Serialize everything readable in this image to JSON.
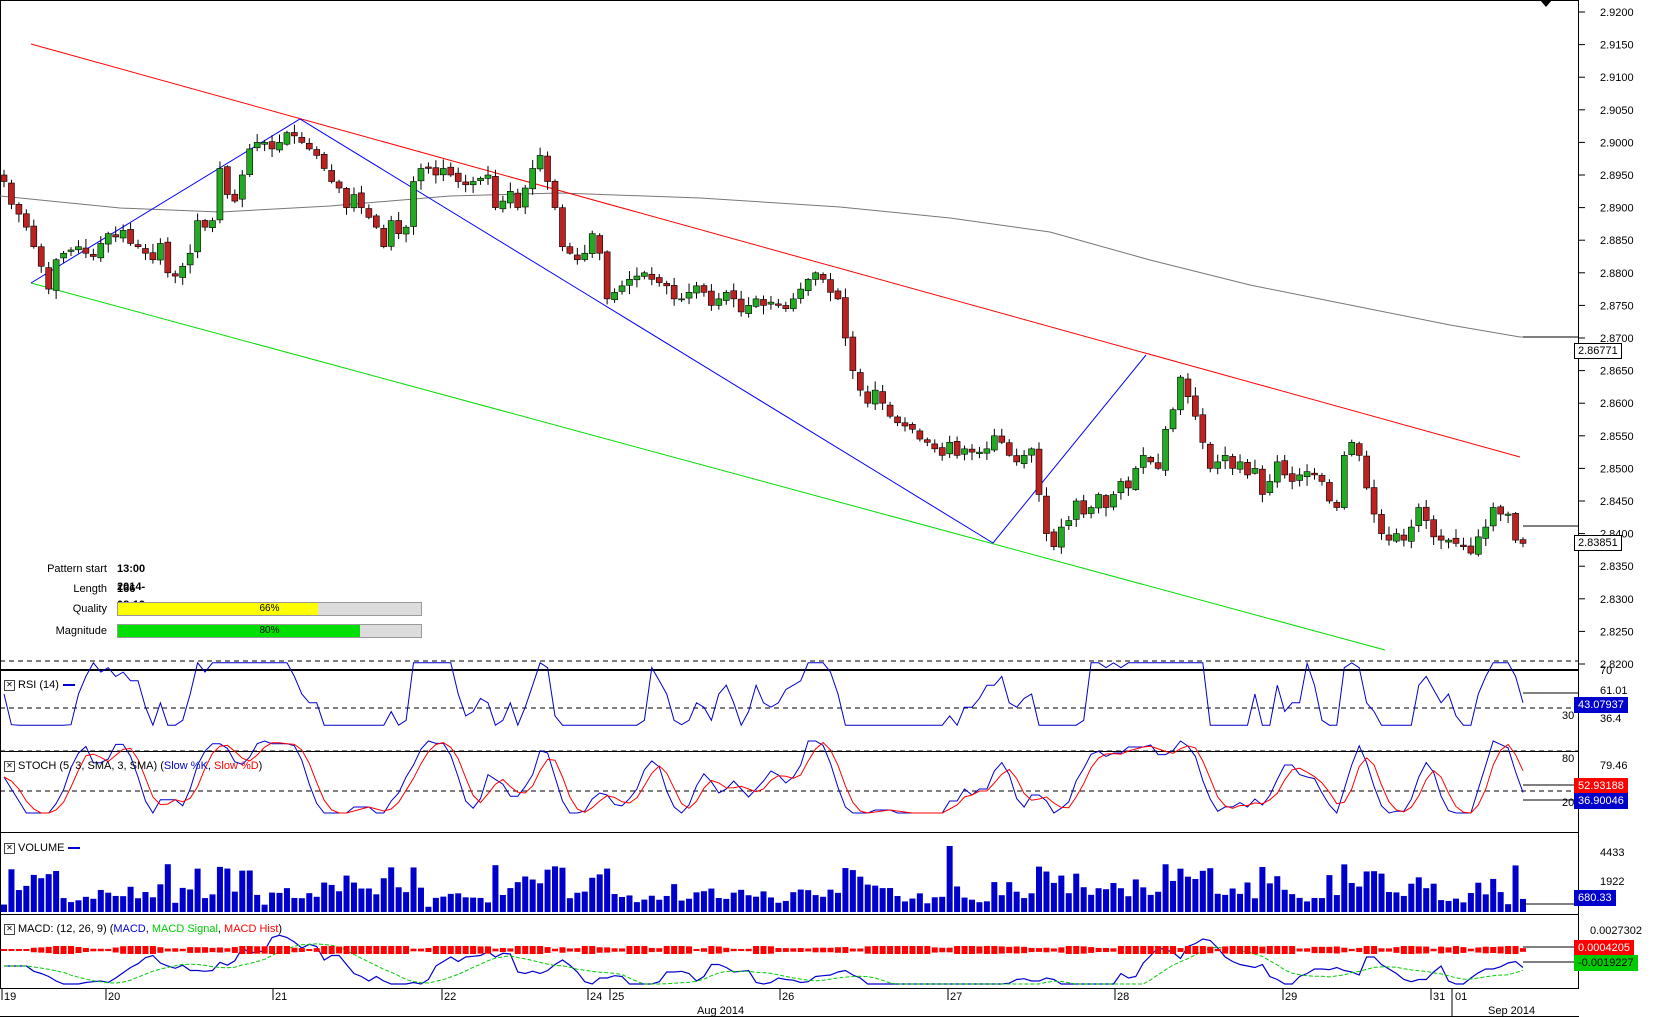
{
  "pattern_info": {
    "start_label": "Pattern start",
    "start_value": "13:00 2014-08-19",
    "length_label": "Length",
    "length_value": "166 bars",
    "quality_label": "Quality",
    "quality_value": "66%",
    "quality_pct": 66,
    "quality_color": "#ffff00",
    "magnitude_label": "Magnitude",
    "magnitude_value": "80%",
    "magnitude_pct": 80,
    "magnitude_color": "#00e000"
  },
  "panes": {
    "rsi": {
      "title": "RSI (14)",
      "legend_color": "#0000cc",
      "current": "43.07937",
      "levels": [
        "70",
        "30"
      ],
      "tick": "61.01",
      "tick2": "36.4"
    },
    "stoch": {
      "title_prefix": "STOCH (5, 3, SMA, 3, SMA) (",
      "k_label": "Slow %K",
      "sep": ", ",
      "d_label": "Slow %D",
      "title_suffix": ")",
      "k_color": "#0000cc",
      "d_color": "#ff0000",
      "current_d": "52.93188",
      "current_k": "36.90046",
      "levels": [
        "80",
        "20"
      ],
      "tick": "79.46"
    },
    "volume": {
      "title": "VOLUME",
      "current": "680.33",
      "ticks": [
        "4433",
        "1922"
      ]
    },
    "macd": {
      "title_prefix": "MACD: (12, 26, 9) (",
      "macd_label": "MACD",
      "sep": ", ",
      "signal_label": "MACD Signal",
      "sep2": ", ",
      "hist_label": "MACD Hist",
      "title_suffix": ")",
      "current_top": "0.0027302",
      "current_hist": "0.0004205",
      "current_signal": "-0.0019227"
    }
  },
  "price_boxes": {
    "ma": "2.86771",
    "last": "2.83851"
  },
  "x_axis": {
    "ticks": [
      "19",
      "20",
      "21",
      "22",
      "24",
      "25",
      "26",
      "27",
      "28",
      "29",
      "31",
      "01"
    ],
    "month_labels": [
      "Aug 2014",
      "Sep 2014"
    ]
  },
  "colors": {
    "up_candle": "#22aa22",
    "down_candle": "#bb2222",
    "resistance": "#ff0000",
    "support": "#00dd00",
    "zigzag": "#0000ff",
    "ma": "#777777",
    "macd_line": "#0000cc",
    "signal_line": "#00cc00",
    "hist": "#ff0000"
  },
  "chart_data": {
    "type": "line",
    "instrument_hint": "candlestick price chart with channel pattern",
    "y_axis_ticks": [
      "2.9200",
      "2.9150",
      "2.9100",
      "2.9050",
      "2.9000",
      "2.8950",
      "2.8900",
      "2.8850",
      "2.8800",
      "2.8750",
      "2.8700",
      "2.8650",
      "2.8600",
      "2.8550",
      "2.8500",
      "2.8450",
      "2.8400",
      "2.8350",
      "2.8300",
      "2.8250",
      "2.8200"
    ],
    "ylim": [
      2.82,
      2.92
    ],
    "ohlc_closes": [
      2.894,
      2.8905,
      2.889,
      2.887,
      2.884,
      2.881,
      2.8775,
      2.882,
      2.883,
      2.8835,
      2.884,
      2.883,
      2.8825,
      2.8845,
      2.886,
      2.8855,
      2.8865,
      2.8845,
      2.884,
      2.883,
      2.882,
      2.8845,
      2.88,
      2.8795,
      2.881,
      2.883,
      2.888,
      2.887,
      2.888,
      2.896,
      2.892,
      2.891,
      2.895,
      2.899,
      2.9,
      2.9,
      2.899,
      2.9,
      2.9015,
      2.901,
      2.9,
      2.899,
      2.898,
      2.896,
      2.894,
      2.893,
      2.89,
      2.892,
      2.89,
      2.8885,
      2.887,
      2.884,
      2.888,
      2.886,
      2.887,
      2.894,
      2.896,
      2.896,
      2.895,
      2.896,
      2.895,
      2.894,
      2.8935,
      2.894,
      2.8945,
      2.895,
      2.89,
      2.891,
      2.8925,
      2.89,
      2.893,
      2.896,
      2.898,
      2.894,
      2.89,
      2.884,
      2.883,
      2.882,
      2.883,
      2.886,
      2.883,
      2.876,
      2.877,
      2.878,
      2.879,
      2.8795,
      2.88,
      2.879,
      2.8785,
      2.878,
      2.876,
      2.876,
      2.877,
      2.878,
      2.877,
      2.875,
      2.876,
      2.877,
      2.876,
      2.874,
      2.875,
      2.876,
      2.875,
      2.8755,
      2.875,
      2.8745,
      2.876,
      2.8775,
      2.879,
      2.88,
      2.879,
      2.877,
      2.876,
      2.87,
      2.865,
      2.862,
      2.86,
      2.862,
      2.86,
      2.858,
      2.857,
      2.8565,
      2.856,
      2.8545,
      2.854,
      2.853,
      2.852,
      2.854,
      2.852,
      2.853,
      2.8525,
      2.8525,
      2.853,
      2.855,
      2.854,
      2.852,
      2.851,
      2.852,
      2.853,
      2.846,
      2.84,
      2.838,
      2.841,
      2.842,
      2.845,
      2.843,
      2.844,
      2.846,
      2.844,
      2.846,
      2.848,
      2.847,
      2.85,
      2.852,
      2.851,
      2.85,
      2.856,
      2.859,
      2.864,
      2.861,
      2.858,
      2.854,
      2.85,
      2.851,
      2.852,
      2.85,
      2.851,
      2.849,
      2.85,
      2.846,
      2.848,
      2.851,
      2.849,
      2.848,
      2.849,
      2.8495,
      2.849,
      2.848,
      2.845,
      2.844,
      2.852,
      2.854,
      2.852,
      2.847,
      2.843,
      2.84,
      2.839,
      2.84,
      2.839,
      2.841,
      2.844,
      2.842,
      2.8395,
      2.839,
      2.839,
      2.8385,
      2.838,
      2.837,
      2.8395,
      2.841,
      2.844,
      2.843,
      2.843,
      2.839,
      2.8385
    ]
  }
}
